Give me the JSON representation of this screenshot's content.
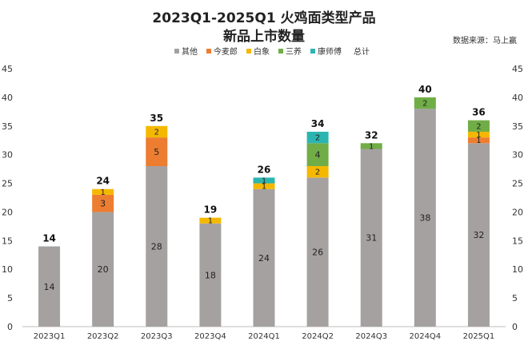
{
  "title_line1": "2023Q1-2025Q1 火鸡面类型产品",
  "title_line2": "新品上市数量",
  "source": "数据来源：马上赢",
  "chart_data": {
    "type": "bar",
    "stacked": true,
    "categories": [
      "2023Q1",
      "2023Q2",
      "2023Q3",
      "2023Q4",
      "2024Q1",
      "2024Q2",
      "2024Q3",
      "2024Q4",
      "2025Q1"
    ],
    "series": [
      {
        "name": "其他",
        "color": "#a5a1a1",
        "values": [
          14,
          20,
          28,
          18,
          24,
          26,
          31,
          38,
          32
        ]
      },
      {
        "name": "今麦郎",
        "color": "#ed7d31",
        "values": [
          0,
          3,
          5,
          0,
          0,
          0,
          0,
          0,
          1
        ]
      },
      {
        "name": "白象",
        "color": "#f5b800",
        "values": [
          0,
          1,
          2,
          1,
          1,
          2,
          0,
          0,
          1
        ]
      },
      {
        "name": "三养",
        "color": "#70ad47",
        "values": [
          0,
          0,
          0,
          0,
          0,
          4,
          1,
          2,
          2
        ]
      },
      {
        "name": "康师傅",
        "color": "#2cb5b0",
        "values": [
          0,
          0,
          0,
          0,
          1,
          2,
          0,
          0,
          0
        ]
      }
    ],
    "totals_legend": "总计",
    "totals": [
      14,
      24,
      35,
      19,
      26,
      34,
      32,
      40,
      36
    ],
    "ylim": [
      0,
      45
    ],
    "yticks": [
      0,
      5,
      10,
      15,
      20,
      25,
      30,
      35,
      40,
      45
    ],
    "secondary_yticks": [
      0,
      5,
      10,
      15,
      20,
      25,
      30,
      35,
      40,
      45
    ],
    "legend_position": "top-center",
    "grid": false
  }
}
